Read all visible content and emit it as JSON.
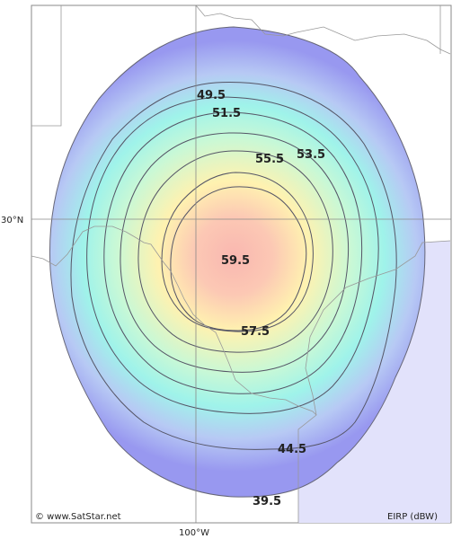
{
  "map": {
    "axis": {
      "latitude_label": "30°N",
      "longitude_label": "100°W"
    },
    "copyright": "© www.SatStar.net",
    "unit_label": "EIRP (dBW)",
    "contour_labels": [
      "49.5",
      "51.5",
      "55.5",
      "53.5",
      "59.5",
      "57.5",
      "44.5",
      "39.5"
    ],
    "colors": {
      "outer": "#9898f0",
      "mid_cyan": "#9ff3ea",
      "mid_yellow": "#fff2b0",
      "center": "#f9b7b0",
      "gulf": "#e2e2fb",
      "contour_line": "#555566",
      "border_line": "#999999"
    }
  }
}
